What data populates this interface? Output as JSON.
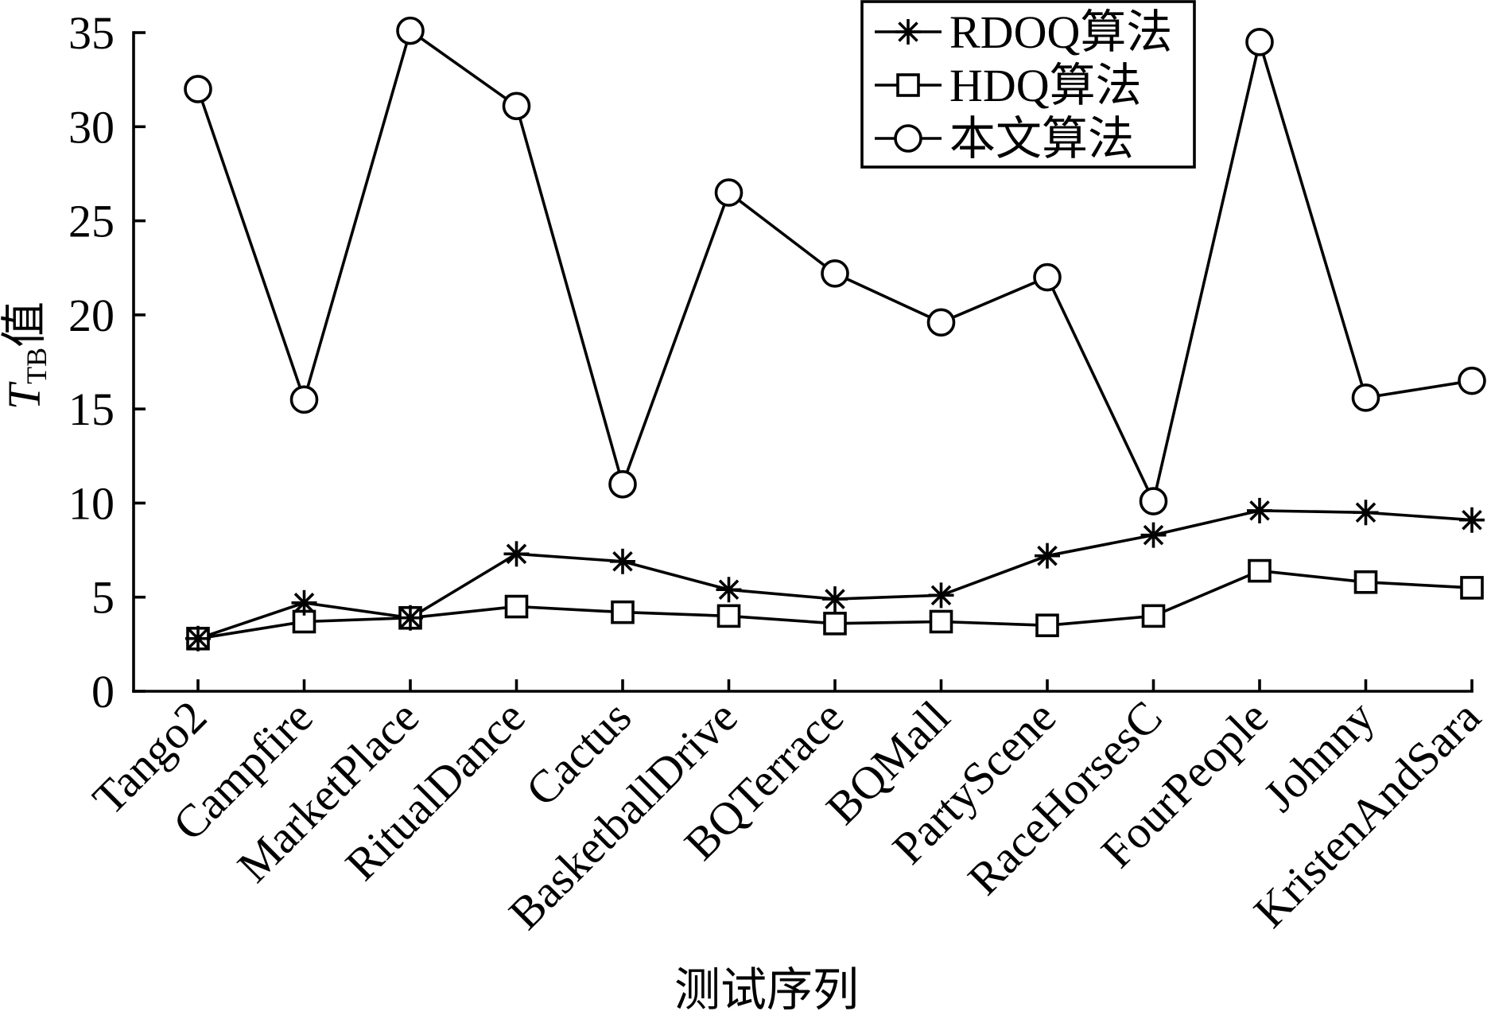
{
  "chart_data": {
    "type": "line",
    "xlabel": "测试序列",
    "ylabel": {
      "symbol": "T",
      "subscript": "TB",
      "text": "值"
    },
    "categories": [
      "Tango2",
      "Campfire",
      "MarketPlace",
      "RitualDance",
      "Cactus",
      "BasketballDrive",
      "BQTerrace",
      "BQMall",
      "PartyScene",
      "RaceHorsesC",
      "FourPeople",
      "Johnny",
      "KristenAndSara"
    ],
    "series": [
      {
        "name": "RDOQ算法",
        "marker": "asterisk",
        "values": [
          2.8,
          4.7,
          3.9,
          7.3,
          6.9,
          5.4,
          4.9,
          5.1,
          7.2,
          8.3,
          9.6,
          9.5,
          9.1
        ]
      },
      {
        "name": "HDQ算法",
        "marker": "square",
        "values": [
          2.8,
          3.7,
          3.9,
          4.5,
          4.2,
          4.0,
          3.6,
          3.7,
          3.5,
          4.0,
          6.4,
          5.8,
          5.5
        ]
      },
      {
        "name": "本文算法",
        "marker": "circle",
        "values": [
          32.0,
          15.5,
          35.1,
          31.1,
          11.0,
          26.5,
          22.2,
          19.6,
          22.0,
          10.1,
          34.5,
          15.6,
          16.5
        ]
      }
    ],
    "ylim": [
      0,
      35
    ],
    "yticks": [
      0,
      5,
      10,
      15,
      20,
      25,
      30,
      35
    ],
    "grid": false,
    "legend": "top-right",
    "colors": {
      "line": "#000000",
      "background": "#ffffff"
    }
  }
}
